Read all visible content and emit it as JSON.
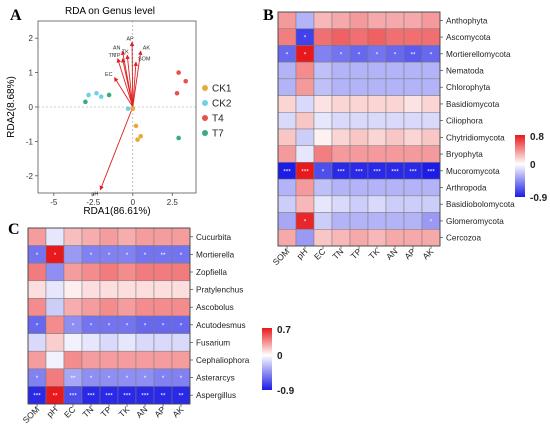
{
  "panels": {
    "A": "A",
    "B": "B",
    "C": "C"
  },
  "chart_data": [
    {
      "type": "scatter",
      "title": "RDA on Genus level",
      "xlabel": "RDA1(86.61%)",
      "ylabel": "RDA2(8.68%)",
      "xlim": [
        -6,
        4
      ],
      "ylim": [
        -2.5,
        2.5
      ],
      "xticks": [
        -5,
        -2.5,
        0,
        2.5
      ],
      "yticks": [
        -2,
        -1,
        0,
        1,
        2
      ],
      "grid": false,
      "legend": "right",
      "series": [
        {
          "name": "CK1",
          "color": "#e8a93a",
          "points": [
            [
              0.0,
              -0.05
            ],
            [
              0.2,
              -0.55
            ],
            [
              0.5,
              -0.85
            ],
            [
              0.3,
              -0.95
            ]
          ]
        },
        {
          "name": "CK2",
          "color": "#6fd0e6",
          "points": [
            [
              -2.8,
              0.35
            ],
            [
              -2.3,
              0.4
            ],
            [
              -2.0,
              0.3
            ],
            [
              -0.3,
              -0.05
            ]
          ]
        },
        {
          "name": "T4",
          "color": "#e8504d",
          "points": [
            [
              2.9,
              1.0
            ],
            [
              3.35,
              0.75
            ],
            [
              2.8,
              0.4
            ]
          ]
        },
        {
          "name": "T7",
          "color": "#3aa982",
          "points": [
            [
              -3.0,
              0.15
            ],
            [
              -1.5,
              0.35
            ],
            [
              2.9,
              -0.9
            ]
          ]
        }
      ],
      "arrows": [
        {
          "label": "AP",
          "x": -0.05,
          "y": 1.88
        },
        {
          "label": "AN",
          "x": -0.65,
          "y": 1.62
        },
        {
          "label": "AK",
          "x": 0.5,
          "y": 1.62
        },
        {
          "label": "TK",
          "x": -0.35,
          "y": 1.5
        },
        {
          "label": "TN",
          "x": -0.95,
          "y": 1.4
        },
        {
          "label": "TP",
          "x": -0.65,
          "y": 1.4
        },
        {
          "label": "SOM",
          "x": 0.2,
          "y": 1.3
        },
        {
          "label": "EC",
          "x": -1.15,
          "y": 0.85
        },
        {
          "label": "pH",
          "x": -2.05,
          "y": -2.4
        }
      ]
    },
    {
      "type": "heatmap",
      "columns": [
        "SOM",
        "pH",
        "EC",
        "TN",
        "TP",
        "TK",
        "AN",
        "AP",
        "AK"
      ],
      "rows": [
        "Anthophyta",
        "Ascomycota",
        "Mortierellomycota",
        "Nematoda",
        "Chlorophyta",
        "Basidiomycota",
        "Ciliophora",
        "Chytridiomycota",
        "Bryophyta",
        "Mucoromycota",
        "Arthropoda",
        "Basidiobolomycota",
        "Glomeromycota",
        "Cercozoa"
      ],
      "values": [
        [
          0.35,
          -0.3,
          0.25,
          0.3,
          0.35,
          0.3,
          0.3,
          0.3,
          0.35
        ],
        [
          0.45,
          -0.75,
          0.5,
          0.55,
          0.5,
          0.55,
          0.5,
          0.5,
          0.5
        ],
        [
          -0.6,
          0.8,
          -0.5,
          -0.55,
          -0.6,
          -0.55,
          -0.6,
          -0.65,
          -0.6
        ],
        [
          -0.3,
          0.4,
          -0.25,
          -0.3,
          -0.3,
          -0.3,
          -0.3,
          -0.3,
          -0.3
        ],
        [
          -0.3,
          0.35,
          -0.25,
          -0.3,
          -0.3,
          -0.3,
          -0.3,
          -0.3,
          -0.3
        ],
        [
          0.15,
          -0.15,
          0.1,
          0.15,
          0.15,
          0.15,
          0.15,
          0.1,
          0.15
        ],
        [
          -0.15,
          0.2,
          -0.1,
          -0.15,
          -0.15,
          -0.15,
          -0.15,
          -0.15,
          -0.15
        ],
        [
          0.2,
          -0.2,
          0.05,
          0.15,
          0.2,
          0.15,
          0.2,
          0.15,
          0.2
        ],
        [
          0.35,
          -0.1,
          0.45,
          0.35,
          0.35,
          0.35,
          0.35,
          0.35,
          0.35
        ],
        [
          -0.9,
          0.8,
          -0.7,
          -0.85,
          -0.85,
          -0.85,
          -0.85,
          -0.85,
          -0.9
        ],
        [
          -0.3,
          0.35,
          -0.25,
          -0.3,
          -0.3,
          -0.3,
          -0.3,
          -0.3,
          -0.3
        ],
        [
          -0.2,
          0.25,
          -0.1,
          -0.15,
          -0.2,
          -0.15,
          -0.2,
          -0.2,
          -0.2
        ],
        [
          -0.35,
          0.75,
          -0.2,
          -0.3,
          -0.3,
          -0.3,
          -0.3,
          -0.3,
          -0.4
        ],
        [
          0.3,
          -0.4,
          0.2,
          0.25,
          0.3,
          0.25,
          0.3,
          0.3,
          0.3
        ]
      ],
      "significance": [
        [
          "",
          "",
          "",
          "",
          "",
          "",
          "",
          "",
          ""
        ],
        [
          "",
          "*",
          "",
          "",
          "",
          "",
          "",
          "",
          ""
        ],
        [
          "*",
          "*",
          "",
          "*",
          "*",
          "*",
          "*",
          "**",
          "*"
        ],
        [
          "",
          "",
          "",
          "",
          "",
          "",
          "",
          "",
          ""
        ],
        [
          "",
          "",
          "",
          "",
          "",
          "",
          "",
          "",
          ""
        ],
        [
          "",
          "",
          "",
          "",
          "",
          "",
          "",
          "",
          ""
        ],
        [
          "",
          "",
          "",
          "",
          "",
          "",
          "",
          "",
          ""
        ],
        [
          "",
          "",
          "",
          "",
          "",
          "",
          "",
          "",
          ""
        ],
        [
          "",
          "",
          "",
          "",
          "",
          "",
          "",
          "",
          ""
        ],
        [
          "***",
          "***",
          "*",
          "***",
          "***",
          "***",
          "***",
          "***",
          "***"
        ],
        [
          "",
          "",
          "",
          "",
          "",
          "",
          "",
          "",
          ""
        ],
        [
          "",
          "",
          "",
          "",
          "",
          "",
          "",
          "",
          ""
        ],
        [
          "",
          "*",
          "",
          "",
          "",
          "",
          "",
          "",
          "*"
        ],
        [
          "",
          "",
          "",
          "",
          "",
          "",
          "",
          "",
          ""
        ]
      ],
      "colorbar": {
        "max": 0.8,
        "mid": 0,
        "min": -0.9,
        "max_label": "0.8",
        "mid_label": "0",
        "min_label": "-0.9"
      },
      "colors": {
        "high": "#e8191c",
        "mid": "#ffffff",
        "low": "#1c1ce6"
      }
    },
    {
      "type": "heatmap",
      "columns": [
        "SOM",
        "pH",
        "EC",
        "TN",
        "TP",
        "TK",
        "AN",
        "AP",
        "AK"
      ],
      "rows": [
        "Cucurbita",
        "Mortierella",
        "Zopfiella",
        "Pratylenchus",
        "Ascobolus",
        "Acutodesmus",
        "Fusarium",
        "Cephaliophora",
        "Asterarcys",
        "Aspergillus"
      ],
      "values": [
        [
          0.3,
          -0.1,
          0.2,
          0.25,
          0.3,
          0.25,
          0.3,
          0.3,
          0.3
        ],
        [
          -0.55,
          0.7,
          -0.4,
          -0.5,
          -0.5,
          -0.5,
          -0.55,
          -0.55,
          -0.55
        ],
        [
          0.4,
          -0.45,
          0.3,
          0.35,
          0.4,
          0.35,
          0.4,
          0.4,
          0.4
        ],
        [
          0.1,
          -0.1,
          0.05,
          0.1,
          0.1,
          0.1,
          0.1,
          0.1,
          0.1
        ],
        [
          0.35,
          -0.2,
          0.25,
          0.3,
          0.35,
          0.3,
          0.35,
          0.35,
          0.35
        ],
        [
          -0.6,
          0.35,
          -0.45,
          -0.55,
          -0.55,
          -0.55,
          -0.6,
          -0.6,
          -0.6
        ],
        [
          -0.15,
          0.15,
          -0.05,
          -0.1,
          -0.15,
          -0.1,
          -0.15,
          -0.15,
          -0.15
        ],
        [
          0.3,
          -0.05,
          0.35,
          0.3,
          0.3,
          0.3,
          0.3,
          0.3,
          0.3
        ],
        [
          -0.5,
          0.4,
          -0.35,
          -0.45,
          -0.45,
          -0.45,
          -0.45,
          -0.5,
          -0.5
        ],
        [
          -0.85,
          0.7,
          -0.7,
          -0.85,
          -0.85,
          -0.85,
          -0.85,
          -0.85,
          -0.85
        ]
      ],
      "significance": [
        [
          "",
          "",
          "",
          "",
          "",
          "",
          "",
          "",
          ""
        ],
        [
          "*",
          "*",
          "",
          "*",
          "*",
          "*",
          "*",
          "**",
          "*"
        ],
        [
          "",
          "",
          "",
          "",
          "",
          "",
          "",
          "",
          ""
        ],
        [
          "",
          "",
          "",
          "",
          "",
          "",
          "",
          "",
          ""
        ],
        [
          "",
          "",
          "",
          "",
          "",
          "",
          "",
          "",
          ""
        ],
        [
          "*",
          "",
          "*",
          "*",
          "*",
          "*",
          "*",
          "*",
          "*"
        ],
        [
          "",
          "",
          "",
          "",
          "",
          "",
          "",
          "",
          ""
        ],
        [
          "",
          "",
          "",
          "",
          "",
          "",
          "",
          "",
          ""
        ],
        [
          "*",
          "",
          "**",
          "*",
          "*",
          "*",
          "*",
          "*",
          "*"
        ],
        [
          "***",
          "**",
          "***",
          "***",
          "***",
          "***",
          "***",
          "**",
          "**"
        ]
      ],
      "colorbar": {
        "max": 0.7,
        "mid": 0,
        "min": -0.9,
        "max_label": "0.7",
        "mid_label": "0",
        "min_label": "-0.9"
      },
      "colors": {
        "high": "#e8191c",
        "mid": "#ffffff",
        "low": "#1c1ce6"
      }
    }
  ]
}
